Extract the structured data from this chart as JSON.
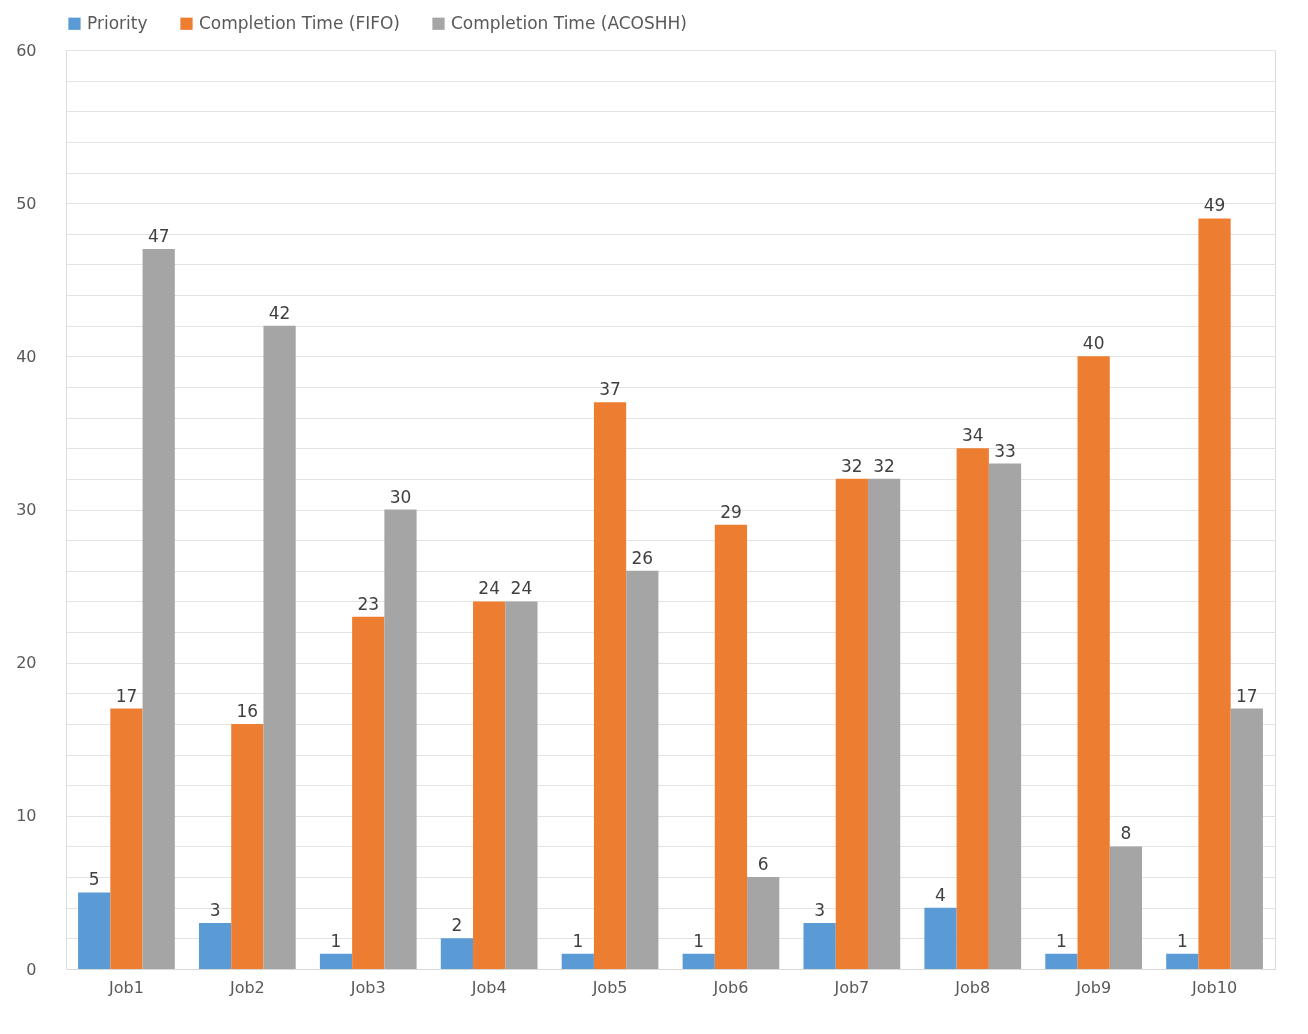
{
  "chart_data": {
    "type": "bar",
    "categories": [
      "Job1",
      "Job2",
      "Job3",
      "Job4",
      "Job5",
      "Job6",
      "Job7",
      "Job8",
      "Job9",
      "Job10"
    ],
    "series": [
      {
        "name": "Priority",
        "color": "#5b9bd5",
        "values": [
          5,
          3,
          1,
          2,
          1,
          1,
          3,
          4,
          1,
          1
        ]
      },
      {
        "name": "Completion Time (FIFO)",
        "color": "#ed7d31",
        "values": [
          17,
          16,
          23,
          24,
          37,
          29,
          32,
          34,
          40,
          49
        ]
      },
      {
        "name": "Completion Time (ACOSHH)",
        "color": "#a5a5a5",
        "values": [
          47,
          42,
          30,
          24,
          26,
          6,
          32,
          33,
          8,
          17
        ]
      }
    ],
    "ylim": [
      0,
      60
    ],
    "yticks": [
      0,
      {
        "value": 2,
        "label": null
      },
      {
        "value": 4,
        "label": null
      },
      {
        "value": 6,
        "label": null
      },
      {
        "value": 8,
        "label": null
      },
      10,
      {
        "value": 12,
        "label": null
      },
      {
        "value": 14,
        "label": null
      },
      {
        "value": 16,
        "label": null
      },
      {
        "value": 18,
        "label": null
      },
      20,
      {
        "value": 22,
        "label": null
      },
      {
        "value": 24,
        "label": null
      },
      {
        "value": 26,
        "label": null
      },
      {
        "value": 28,
        "label": null
      },
      30,
      {
        "value": 32,
        "label": null
      },
      {
        "value": 34,
        "label": null
      },
      {
        "value": 36,
        "label": null
      },
      {
        "value": 38,
        "label": null
      },
      40,
      {
        "value": 42,
        "label": null
      },
      {
        "value": 44,
        "label": null
      },
      {
        "value": 46,
        "label": null
      },
      {
        "value": 48,
        "label": null
      },
      50,
      {
        "value": 52,
        "label": null
      },
      {
        "value": 54,
        "label": null
      },
      {
        "value": 56,
        "label": null
      },
      {
        "value": 58,
        "label": null
      },
      60
    ],
    "grid": "y",
    "legend": "top",
    "data_labels": true
  }
}
